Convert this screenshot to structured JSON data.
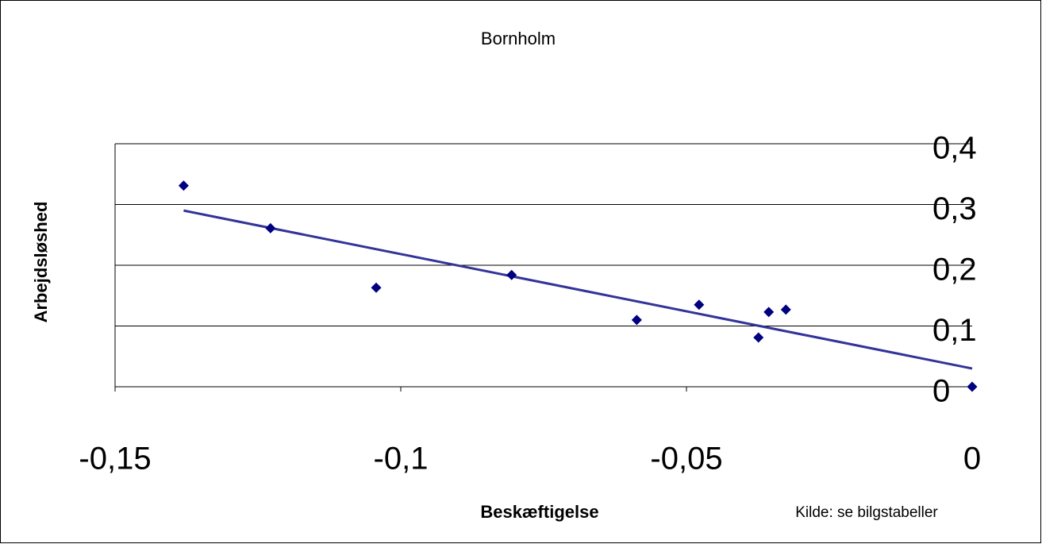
{
  "chart_data": {
    "type": "scatter",
    "title": "Bornholm",
    "x_label": "Beskæftigelse",
    "y_label": "Arbejdsløshed",
    "note": "Kilde: se bilgstabeller",
    "series": [
      {
        "name": "Bornholm",
        "color": "#000080",
        "x": [
          -0.138,
          -0.1228,
          -0.1043,
          -0.0806,
          -0.0587,
          -0.0478,
          -0.0374,
          -0.0356,
          -0.0326,
          0
        ],
        "values": [
          0.331,
          0.261,
          0.163,
          0.184,
          0.11,
          0.135,
          0.081,
          0.123,
          0.127,
          0
        ]
      }
    ],
    "trendline": {
      "color": "#333399",
      "x": [
        -0.138,
        0
      ],
      "values": [
        0.29,
        0.03
      ]
    },
    "xlim": [
      -0.15,
      0
    ],
    "xticks": [
      {
        "value": -0.15,
        "label": "-0,15"
      },
      {
        "value": -0.1,
        "label": "-0,1"
      },
      {
        "value": -0.05,
        "label": "-0,05"
      },
      0
    ],
    "ylim": [
      0,
      0.4
    ],
    "yticks": [
      0,
      {
        "value": 0.1,
        "label": "0,1"
      },
      {
        "value": 0.2,
        "label": "0,2"
      },
      {
        "value": 0.3,
        "label": "0,3"
      },
      {
        "value": 0.4,
        "label": "0,4"
      }
    ],
    "grid": true
  }
}
